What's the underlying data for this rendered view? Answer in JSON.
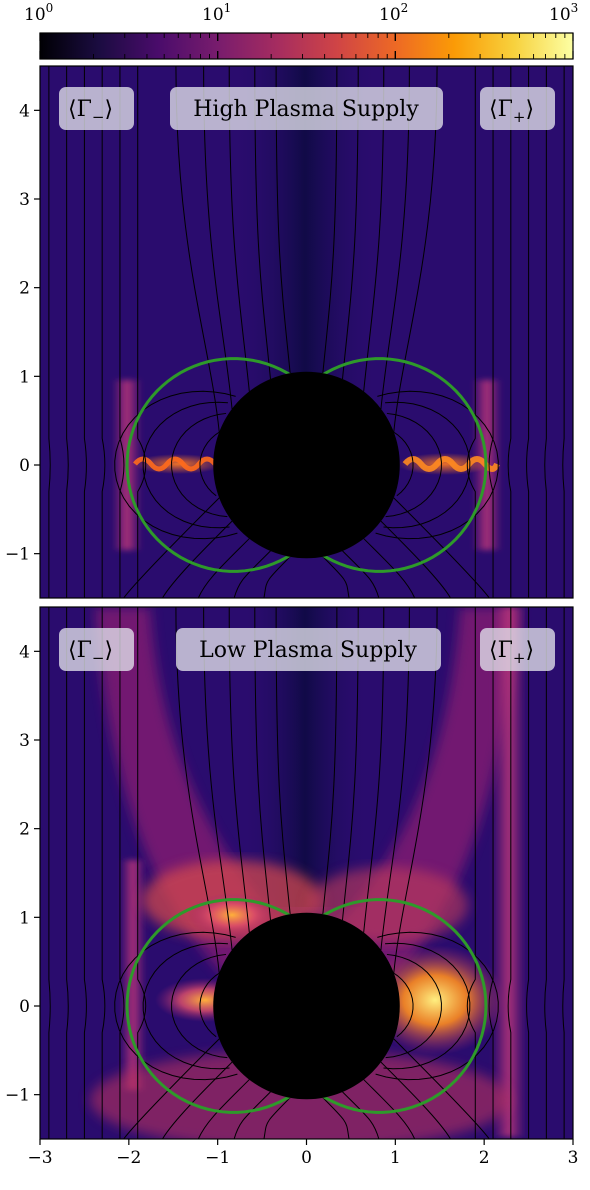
{
  "colorbar": {
    "ticks": [
      {
        "base": "10",
        "exp": "0",
        "value": 1
      },
      {
        "base": "10",
        "exp": "1",
        "value": 10
      },
      {
        "base": "10",
        "exp": "2",
        "value": 100
      },
      {
        "base": "10",
        "exp": "3",
        "value": 1000
      }
    ],
    "scale": "log",
    "range": [
      1,
      1000
    ],
    "colormap": [
      "#000004",
      "#1b0c41",
      "#4a0c6b",
      "#781c6d",
      "#a52c60",
      "#cf4446",
      "#ed6925",
      "#fb9b06",
      "#f7d13d",
      "#fcffa4"
    ]
  },
  "panels": [
    {
      "title": "High Plasma Supply",
      "left_label": {
        "open": "⟨Γ",
        "sub": "−",
        "close": "⟩"
      },
      "right_label": {
        "open": "⟨Γ",
        "sub": "+",
        "close": "⟩"
      }
    },
    {
      "title": "Low Plasma Supply",
      "left_label": {
        "open": "⟨Γ",
        "sub": "−",
        "close": "⟩"
      },
      "right_label": {
        "open": "⟨Γ",
        "sub": "+",
        "close": "⟩"
      }
    }
  ],
  "axes": {
    "x_ticks": [
      "−3",
      "−2",
      "−1",
      "0",
      "1",
      "2",
      "3"
    ],
    "x_values": [
      -3,
      -2,
      -1,
      0,
      1,
      2,
      3
    ],
    "y_ticks": [
      "−1",
      "0",
      "1",
      "2",
      "3",
      "4"
    ],
    "y_values": [
      -1,
      0,
      1,
      2,
      3,
      4
    ],
    "xlim": [
      -3,
      3
    ],
    "ylim": [
      -1.5,
      4.5
    ]
  },
  "colors": {
    "background_field": "#2a0c6e",
    "field_lines": "#000000",
    "light_cylinder": "#2e9a2a",
    "star": "#000000",
    "label_box": "rgba(225,225,235,0.78)"
  }
}
